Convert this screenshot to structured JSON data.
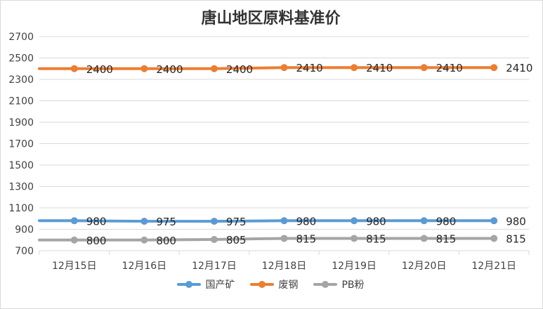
{
  "chart_data": {
    "type": "line",
    "title": "唐山地区原料基准价",
    "categories": [
      "12月15日",
      "12月16日",
      "12月17日",
      "12月18日",
      "12月19日",
      "12月20日",
      "12月21日"
    ],
    "ylim": [
      700,
      2700
    ],
    "yticks": [
      700,
      900,
      1100,
      1300,
      1500,
      1700,
      1900,
      2100,
      2300,
      2500,
      2700
    ],
    "grid": true,
    "legend_position": "bottom",
    "series": [
      {
        "name": "国产矿",
        "color": "#5b9bd5",
        "values": [
          980,
          975,
          975,
          980,
          980,
          980,
          980
        ],
        "labels": [
          "980",
          "975",
          "975",
          "980",
          "980",
          "980",
          "980"
        ]
      },
      {
        "name": "废钢",
        "color": "#ed7d31",
        "values": [
          2400,
          2400,
          2400,
          2410,
          2410,
          2410,
          2410
        ],
        "labels": [
          "2400",
          "2400",
          "2400",
          "2410",
          "2410",
          "2410",
          "2410"
        ]
      },
      {
        "name": "PB粉",
        "color": "#a5a5a5",
        "values": [
          800,
          800,
          805,
          815,
          815,
          815,
          815
        ],
        "labels": [
          "800",
          "800",
          "805",
          "815",
          "815",
          "815",
          "815"
        ]
      }
    ]
  }
}
